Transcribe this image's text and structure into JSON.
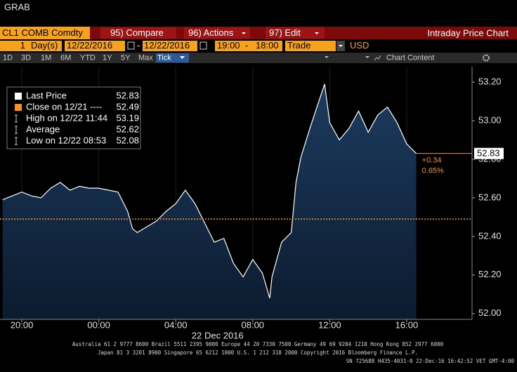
{
  "header": {
    "title": "GRAB"
  },
  "toolbar": {
    "security": "CL1 COMB Comdty",
    "menus": [
      "95) Compare",
      "96) Actions",
      "97) Edit"
    ],
    "panel_title": "Intraday Price Chart"
  },
  "date_range": {
    "period": "1",
    "unit": "Day(s)",
    "start_date": "12/22/2016",
    "separator": "-",
    "end_date": "12/22/2016",
    "start_time": "19:00",
    "time_separator": "-",
    "end_time": "18:00",
    "field": "Trade",
    "currency": "USD"
  },
  "buttons": [
    "1D",
    "3D",
    "1M",
    "6M",
    "YTD",
    "1Y",
    "5Y",
    "Max",
    "Tick"
  ],
  "chart_content": "Chart Content",
  "chart_data": {
    "type": "line",
    "x": [
      "19:00",
      "19:30",
      "20:00",
      "20:30",
      "21:00",
      "21:30",
      "22:00",
      "22:30",
      "23:00",
      "23:30",
      "00:00",
      "00:30",
      "01:00",
      "01:30",
      "01:45",
      "02:00",
      "02:30",
      "03:00",
      "03:30",
      "04:00",
      "04:30",
      "05:00",
      "05:30",
      "06:00",
      "06:30",
      "07:00",
      "07:30",
      "08:00",
      "08:30",
      "08:53",
      "09:00",
      "09:30",
      "10:00",
      "10:15",
      "10:30",
      "11:00",
      "11:30",
      "11:44",
      "12:00",
      "12:30",
      "13:00",
      "13:30",
      "14:00",
      "14:30",
      "15:00",
      "15:30",
      "16:00",
      "16:30"
    ],
    "series": [
      {
        "name": "Last Price",
        "color": "#ffffff",
        "fill": "#17314f",
        "last_value": 52.83,
        "values": [
          52.59,
          52.61,
          52.63,
          52.61,
          52.6,
          52.65,
          52.68,
          52.64,
          52.66,
          52.65,
          52.65,
          52.64,
          52.63,
          52.53,
          52.44,
          52.42,
          52.45,
          52.48,
          52.53,
          52.57,
          52.64,
          52.57,
          52.47,
          52.37,
          52.39,
          52.26,
          52.19,
          52.28,
          52.21,
          52.08,
          52.19,
          52.37,
          52.42,
          52.68,
          52.81,
          52.97,
          53.12,
          53.19,
          52.99,
          52.9,
          52.96,
          53.05,
          52.94,
          53.03,
          53.07,
          52.99,
          52.88,
          52.83
        ]
      }
    ],
    "stats": [
      {
        "label": "Close on 12/21 ----",
        "value": 52.49,
        "color": "#f7941d"
      },
      {
        "label": "High on 12/22 11:44",
        "value": 53.19
      },
      {
        "label": "Average",
        "value": 52.62
      },
      {
        "label": "Low on 12/22 08:53",
        "value": 52.08
      }
    ],
    "change": {
      "value": 0.34,
      "label": "+0.34"
    },
    "change_pct": {
      "value": 0.65,
      "label": "0.65%"
    },
    "xlim": [
      "18:52",
      "18:40"
    ],
    "xticks": [
      "20:00",
      "00:00",
      "04:00",
      "08:00",
      "12:00",
      "16:00"
    ],
    "x_label": "22 Dec 2016",
    "ylim": [
      51.97,
      53.28
    ],
    "yticks": [
      {
        "value": 52,
        "label": "52.00"
      },
      {
        "value": 52.2,
        "label": "52.20"
      },
      {
        "value": 52.4,
        "label": "52.40"
      },
      {
        "value": 52.6,
        "label": "52.60"
      },
      {
        "value": 52.8,
        "label": "52.80"
      },
      {
        "value": 53,
        "label": "53.00"
      },
      {
        "value": 53.2,
        "label": "53.20"
      }
    ],
    "grid": true
  },
  "footer": {
    "lines": [
      "Australia 61 2 9777 8600 Brazil 5511 2395 9000 Europe 44 20 7330 7500 Germany 49 69 9204 1210 Hong Kong 852 2977 6000",
      "Japan 81 3 3201 8900       Singapore 65 6212 1000       U.S. 1 212 318 2000        Copyright 2016 Bloomberg Finance L.P.",
      "SN 725688 H435-4031-0 22-Dec-16 16:42:52 VET  GMT-4:00"
    ]
  }
}
